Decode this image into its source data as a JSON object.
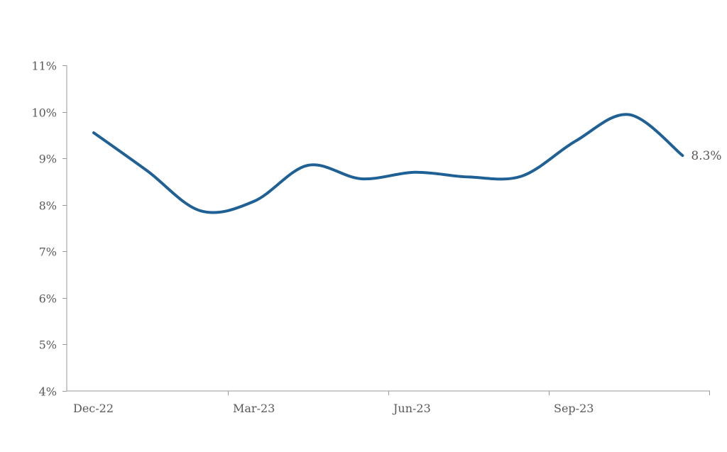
{
  "chart_data": {
    "type": "line",
    "title": "",
    "xlabel": "",
    "ylabel": "",
    "ylim": [
      0.04,
      0.11
    ],
    "y_ticks": [
      "4%",
      "5%",
      "6%",
      "7%",
      "8%",
      "9%",
      "10%",
      "11%"
    ],
    "y_tick_values": [
      0.04,
      0.05,
      0.06,
      0.07,
      0.08,
      0.09,
      0.1,
      0.11
    ],
    "x_tick_labels": [
      "Dec-22",
      "Mar-23",
      "Jun-23",
      "Sep-23"
    ],
    "x": [
      "2022-12",
      "2023-01",
      "2023-02",
      "2023-03",
      "2023-04",
      "2023-05",
      "2023-06",
      "2023-07",
      "2023-08",
      "2023-09",
      "2023-10",
      "2023-11",
      "2023-12"
    ],
    "series": [
      {
        "values": [
          0.0955,
          0.0873,
          0.0787,
          0.0808,
          0.0885,
          0.0856,
          0.087,
          0.086,
          0.0862,
          0.0937,
          0.0994,
          0.0906,
          null
        ],
        "color": "#1f6095"
      }
    ],
    "end_label": "8.3%",
    "grid": false,
    "legend": "none"
  }
}
